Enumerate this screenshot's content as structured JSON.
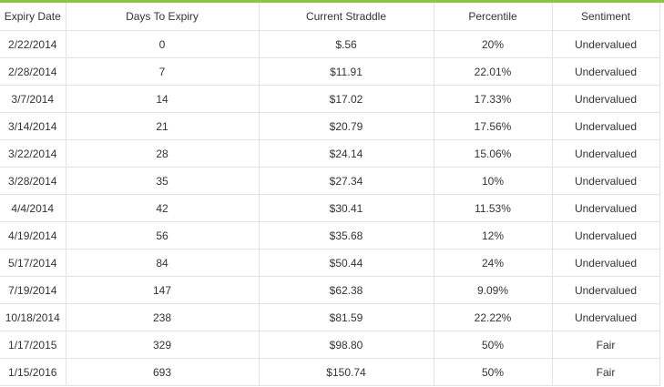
{
  "colors": {
    "accent": "#8cc63f",
    "grid": "#e2e2e2",
    "text": "#333333"
  },
  "table": {
    "headers": [
      "Expiry Date",
      "Days To Expiry",
      "Current Straddle",
      "Percentile",
      "Sentiment"
    ],
    "rows": [
      [
        "2/22/2014",
        "0",
        "$.56",
        "20%",
        "Undervalued"
      ],
      [
        "2/28/2014",
        "7",
        "$11.91",
        "22.01%",
        "Undervalued"
      ],
      [
        "3/7/2014",
        "14",
        "$17.02",
        "17.33%",
        "Undervalued"
      ],
      [
        "3/14/2014",
        "21",
        "$20.79",
        "17.56%",
        "Undervalued"
      ],
      [
        "3/22/2014",
        "28",
        "$24.14",
        "15.06%",
        "Undervalued"
      ],
      [
        "3/28/2014",
        "35",
        "$27.34",
        "10%",
        "Undervalued"
      ],
      [
        "4/4/2014",
        "42",
        "$30.41",
        "11.53%",
        "Undervalued"
      ],
      [
        "4/19/2014",
        "56",
        "$35.68",
        "12%",
        "Undervalued"
      ],
      [
        "5/17/2014",
        "84",
        "$50.44",
        "24%",
        "Undervalued"
      ],
      [
        "7/19/2014",
        "147",
        "$62.38",
        "9.09%",
        "Undervalued"
      ],
      [
        "10/18/2014",
        "238",
        "$81.59",
        "22.22%",
        "Undervalued"
      ],
      [
        "1/17/2015",
        "329",
        "$98.80",
        "50%",
        "Fair"
      ],
      [
        "1/15/2016",
        "693",
        "$150.74",
        "50%",
        "Fair"
      ]
    ]
  }
}
